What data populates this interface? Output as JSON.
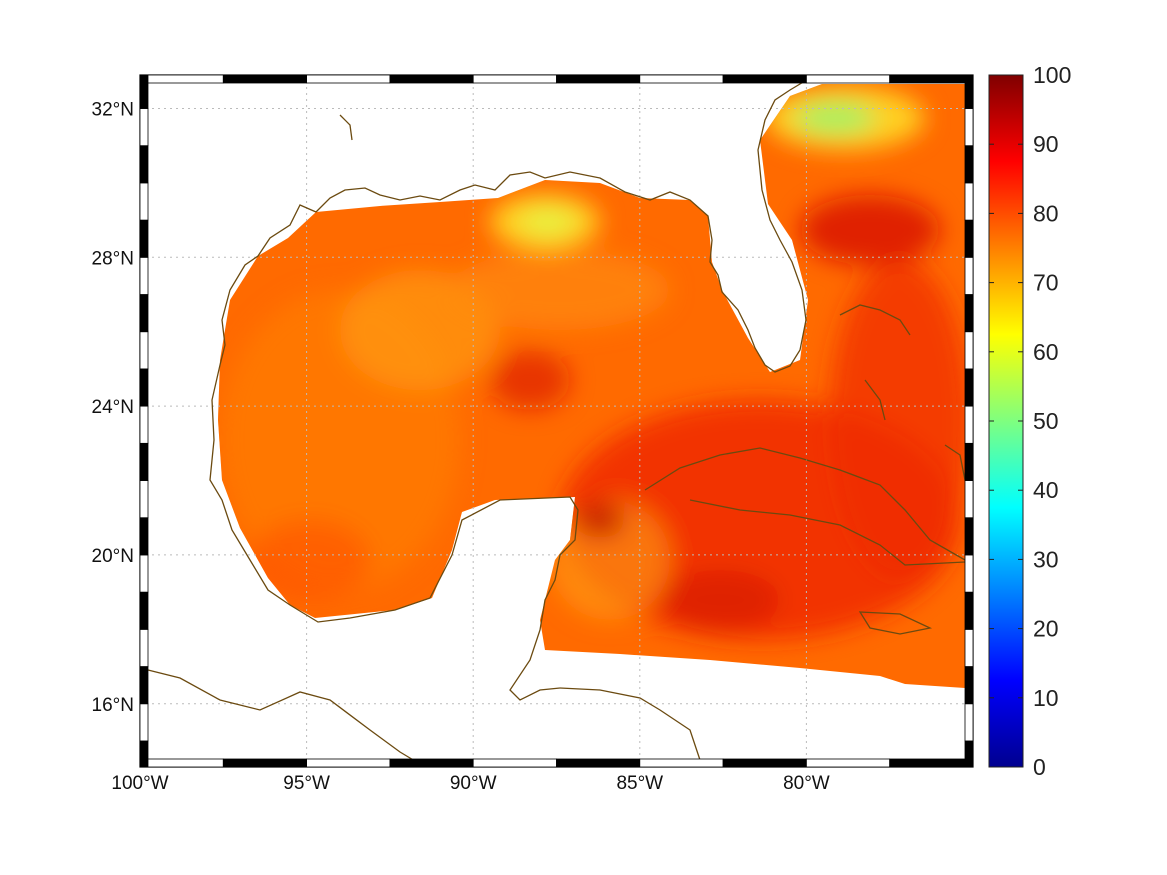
{
  "map": {
    "lon_range": [
      -100,
      -75
    ],
    "lat_range": [
      14.3,
      32.9
    ],
    "lon_ticks": [
      {
        "lon": -100,
        "label": "100°W"
      },
      {
        "lon": -95,
        "label": "95°W"
      },
      {
        "lon": -90,
        "label": "90°W"
      },
      {
        "lon": -85,
        "label": "85°W"
      },
      {
        "lon": -80,
        "label": "80°W"
      }
    ],
    "lat_ticks": [
      {
        "lat": 32,
        "label": "32°N"
      },
      {
        "lat": 28,
        "label": "28°N"
      },
      {
        "lat": 24,
        "label": "24°N"
      },
      {
        "lat": 20,
        "label": "20°N"
      },
      {
        "lat": 16,
        "label": "16°N"
      }
    ],
    "gridlines": true,
    "colormap": "jet",
    "coastline_color": "#6b4a10",
    "land_color": "#ffffff"
  },
  "colorbar": {
    "min": 0,
    "max": 100,
    "ticks": [
      "0",
      "10",
      "20",
      "30",
      "40",
      "50",
      "60",
      "70",
      "80",
      "90",
      "100"
    ]
  }
}
